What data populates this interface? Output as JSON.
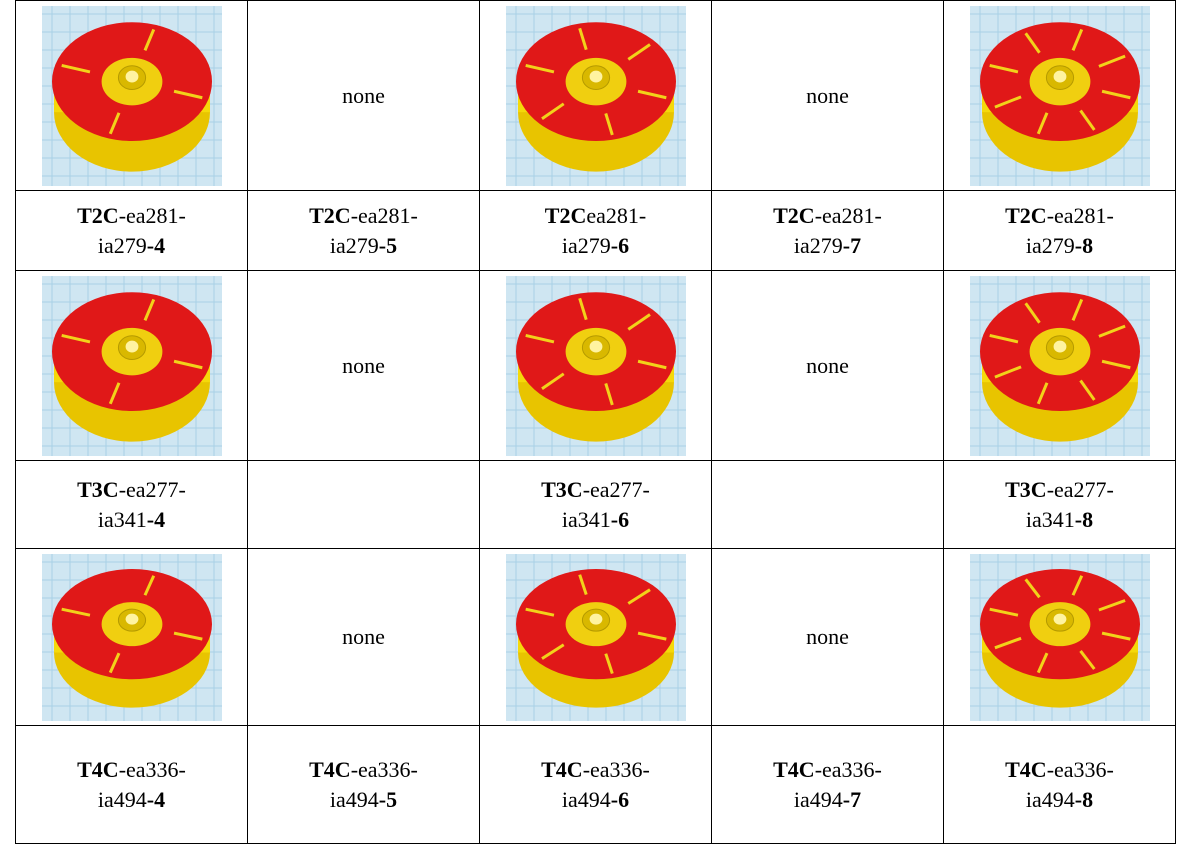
{
  "table": {
    "rows": [
      [
        null,
        "none",
        null,
        "none",
        null
      ],
      [
        {
          "code": "T2C",
          "name": "-ea281-ia279",
          "count": "-4"
        },
        {
          "code": "T2C",
          "name": "-ea281-ia279",
          "count": "-5"
        },
        {
          "code": "T2C",
          "name": "ea281-ia279",
          "count": "-6"
        },
        {
          "code": "T2C",
          "name": "-ea281-ia279",
          "count": "-7"
        },
        {
          "code": "T2C",
          "name": "-ea281-ia279",
          "count": "-8"
        }
      ],
      [
        null,
        "none",
        null,
        "none",
        null
      ],
      [
        {
          "code": "T3C",
          "name": "-ea277-ia341",
          "count": "-4"
        },
        null,
        {
          "code": "T3C",
          "name": "-ea277-ia341",
          "count": "-6"
        },
        null,
        {
          "code": "T3C",
          "name": "-ea277-ia341",
          "count": "-8"
        }
      ],
      [
        null,
        "none",
        null,
        "none",
        null
      ],
      [
        {
          "code": "T4C",
          "name": "-ea336-ia494",
          "count": "-4"
        },
        {
          "code": "T4C",
          "name": "-ea336-ia494",
          "count": "-5"
        },
        {
          "code": "T4C",
          "name": "-ea336-ia494",
          "count": "-6"
        },
        {
          "code": "T4C",
          "name": "-ea336-ia494",
          "count": "-7"
        },
        {
          "code": "T4C",
          "name": "-ea336-ia494",
          "count": "-8"
        }
      ]
    ]
  }
}
